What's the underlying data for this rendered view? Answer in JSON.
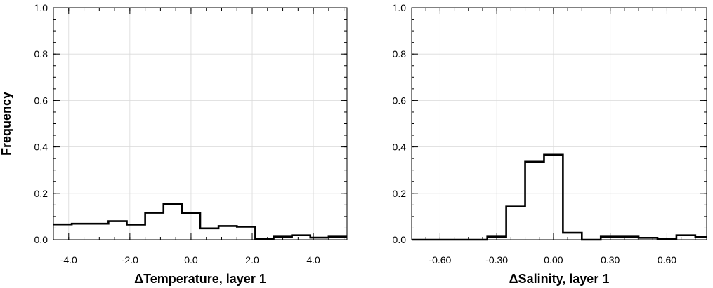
{
  "chart_data": [
    {
      "type": "histogram",
      "xlabel": "ΔTemperature, layer 1",
      "ylabel": "Frequency",
      "xlim": [
        -4.5,
        5.1
      ],
      "ylim": [
        0,
        1.0
      ],
      "grid": true,
      "x_ticks": [
        -4.0,
        -2.0,
        0.0,
        2.0,
        4.0
      ],
      "x_tick_labels": [
        "-4.0",
        "-2.0",
        "0.0",
        "2.0",
        "4.0"
      ],
      "x_minor_step": 0.5,
      "y_ticks": [
        0.0,
        0.2,
        0.4,
        0.6,
        0.8,
        1.0
      ],
      "y_tick_labels": [
        "0.0",
        "0.2",
        "0.4",
        "0.6",
        "0.8",
        "1.0"
      ],
      "y_minor_step": 0.05,
      "bin_edges": [
        -4.5,
        -3.9,
        -3.3,
        -2.7,
        -2.1,
        -1.5,
        -0.9,
        -0.3,
        0.3,
        0.9,
        1.5,
        2.1,
        2.7,
        3.3,
        3.9,
        4.5,
        5.1
      ],
      "values": [
        0.066,
        0.069,
        0.069,
        0.08,
        0.065,
        0.116,
        0.155,
        0.115,
        0.049,
        0.059,
        0.056,
        0.005,
        0.013,
        0.019,
        0.009,
        0.013
      ]
    },
    {
      "type": "histogram",
      "xlabel": "ΔSalinity, layer 1",
      "ylabel": "",
      "xlim": [
        -0.75,
        0.81
      ],
      "ylim": [
        0,
        1.0
      ],
      "grid": true,
      "x_ticks": [
        -0.6,
        -0.3,
        0.0,
        0.3,
        0.6
      ],
      "x_tick_labels": [
        "-0.60",
        "-0.30",
        "0.00",
        "0.30",
        "0.60"
      ],
      "x_minor_step": 0.075,
      "y_ticks": [
        0.0,
        0.2,
        0.4,
        0.6,
        0.8,
        1.0
      ],
      "y_tick_labels": [
        "0.0",
        "0.2",
        "0.4",
        "0.6",
        "0.8",
        "1.0"
      ],
      "y_minor_step": 0.05,
      "bin_edges": [
        -0.75,
        -0.65,
        -0.55,
        -0.45,
        -0.35,
        -0.25,
        -0.15,
        -0.05,
        0.05,
        0.15,
        0.25,
        0.35,
        0.45,
        0.55,
        0.65,
        0.75,
        0.81
      ],
      "values": [
        0.0,
        0.0,
        0.0,
        0.0,
        0.013,
        0.143,
        0.336,
        0.366,
        0.03,
        0.0,
        0.013,
        0.013,
        0.008,
        0.004,
        0.019,
        0.011
      ]
    }
  ]
}
